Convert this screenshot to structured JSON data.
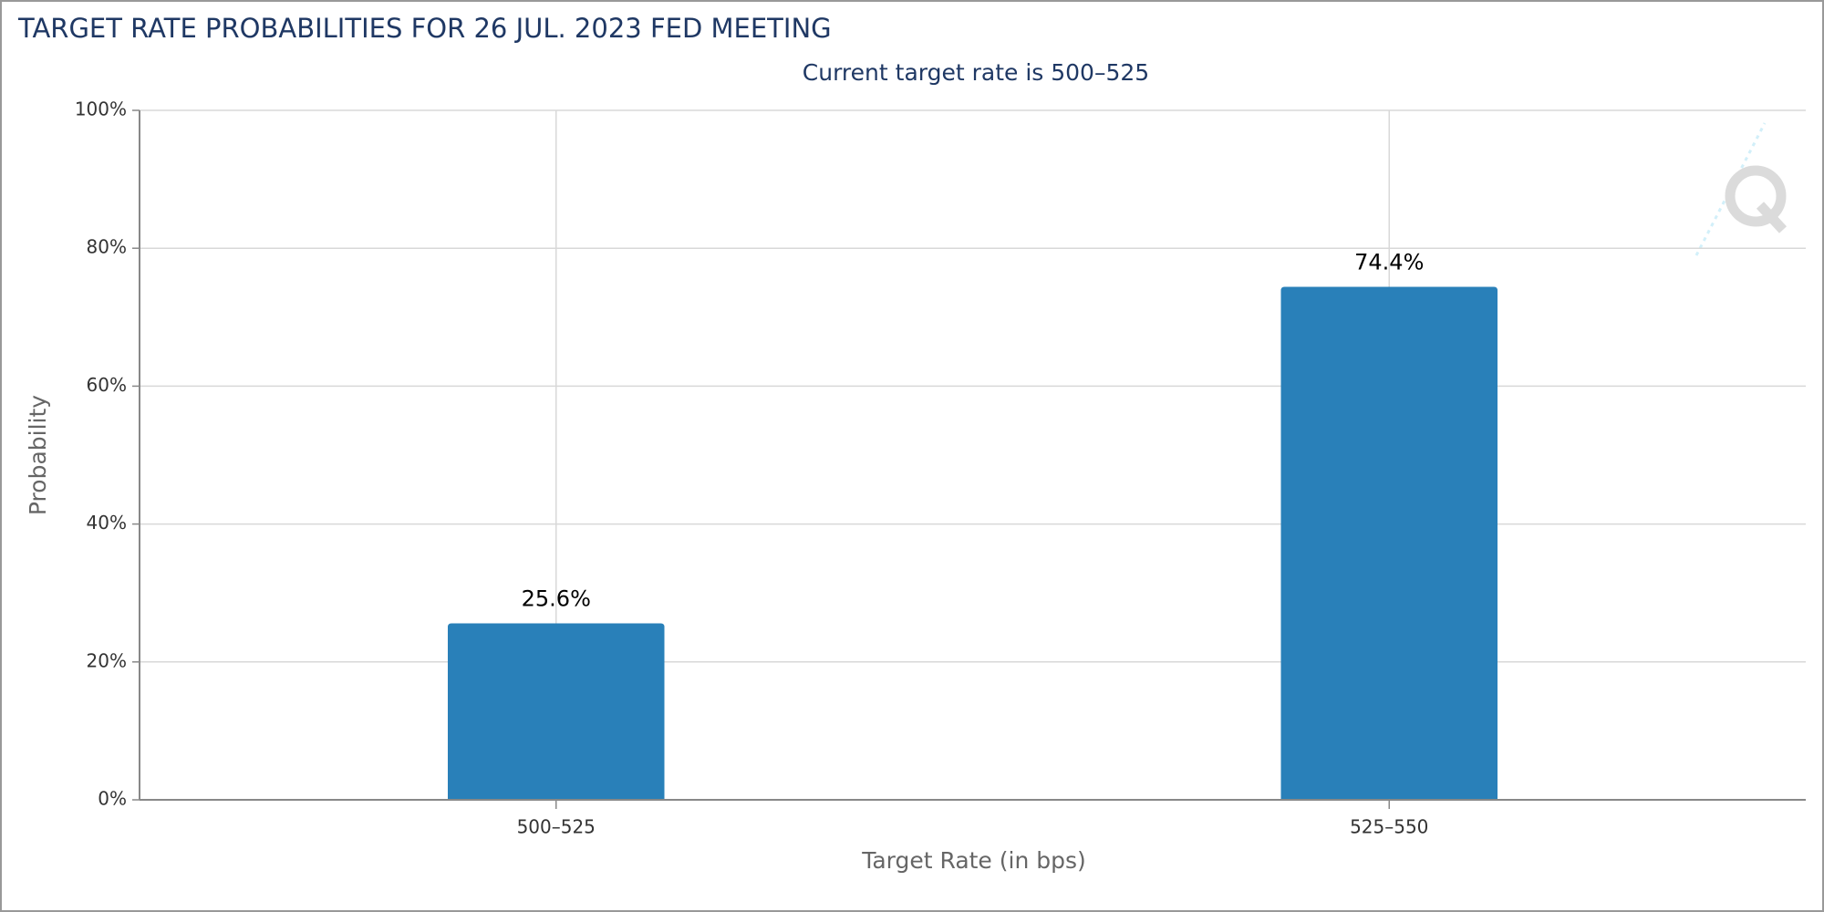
{
  "chart_data": {
    "type": "bar",
    "title": "TARGET RATE PROBABILITIES FOR 26 JUL. 2023 FED MEETING",
    "subtitle": "Current target rate is 500–525",
    "x_label": "Target Rate (in bps)",
    "y_label": "Probability",
    "categories": [
      "500–525",
      "525–550"
    ],
    "values": [
      25.6,
      74.4
    ],
    "value_labels": [
      "25.6%",
      "74.4%"
    ],
    "color": "#2980b9",
    "ylim": [
      0,
      100
    ],
    "yticks": [
      {
        "value": 0,
        "label": "0%"
      },
      {
        "value": 20,
        "label": "20%"
      },
      {
        "value": 40,
        "label": "40%"
      },
      {
        "value": 60,
        "label": "60%"
      },
      {
        "value": 80,
        "label": "80%"
      },
      {
        "value": 100,
        "label": "100%"
      }
    ],
    "grid": true
  }
}
